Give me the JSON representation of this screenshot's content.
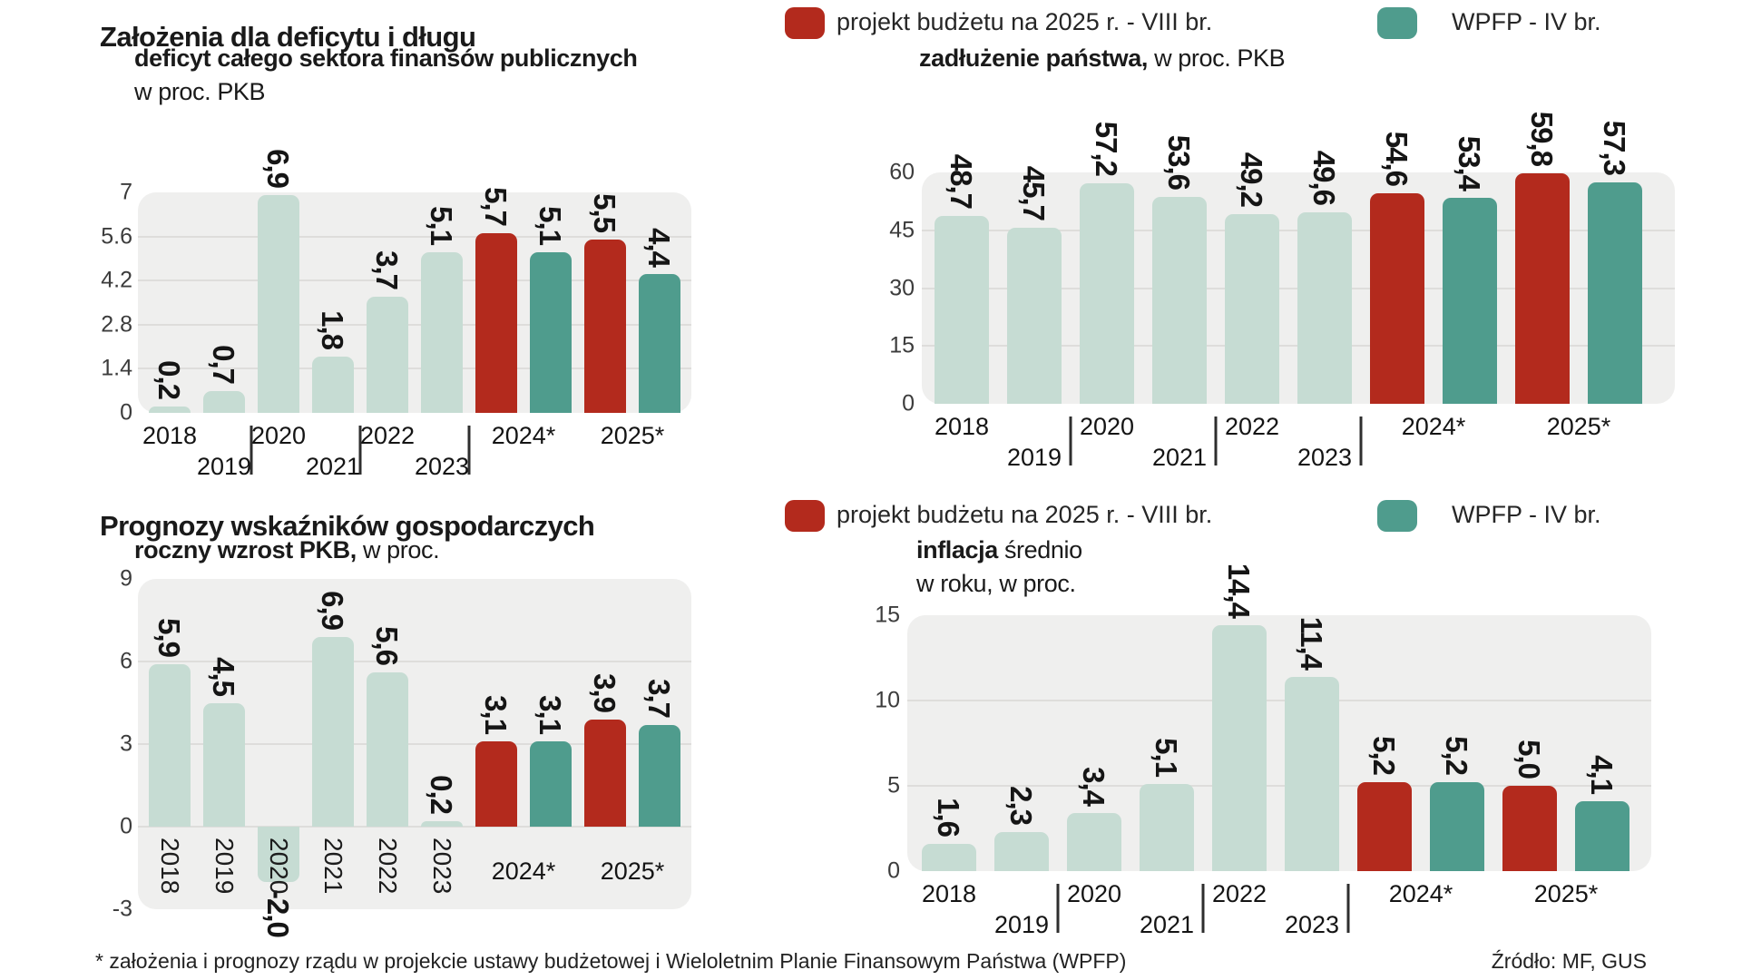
{
  "page": {
    "section1_title": "Założenia dla deficytu i długu",
    "section2_title": "Prognozy wskaźników gospodarczych",
    "footnote": "* założenia i prognozy rządu w projekcie ustawy budżetowej i Wieloletnim Planie Finansowym Państwa (WPFP)",
    "source": "Źródło: MF, GUS"
  },
  "legend": {
    "items": [
      {
        "label": "projekt budżetu na 2025 r. - VIII br.",
        "color_key": "red"
      },
      {
        "label": "WPFP - IV  br.",
        "color_key": "teal"
      }
    ]
  },
  "colors": {
    "light": "#c6dcd3",
    "red": "#b32a1d",
    "teal": "#4f9c8d",
    "plot_bg": "#efefee",
    "grid": "#dedddb"
  },
  "chart_data": [
    {
      "id": "deficyt",
      "type": "bar",
      "title_lines": [
        [
          {
            "t": "deficyt całego sektora finansów publicznych",
            "b": true
          }
        ],
        [
          {
            "t": "w proc. PKB",
            "b": false
          }
        ]
      ],
      "ylim": [
        0,
        7
      ],
      "yticks": [
        {
          "v": 7,
          "label": "7"
        },
        {
          "v": 5.6,
          "label": "5.6"
        },
        {
          "v": 4.2,
          "label": "4.2"
        },
        {
          "v": 2.8,
          "label": "2.8"
        },
        {
          "v": 1.4,
          "label": "1.4"
        },
        {
          "v": 0,
          "label": "0"
        }
      ],
      "bars": [
        {
          "category": "2018",
          "value": 0.2,
          "label": "0,2",
          "series": "light"
        },
        {
          "category": "2019",
          "value": 0.7,
          "label": "0,7",
          "series": "light"
        },
        {
          "category": "2020",
          "value": 6.9,
          "label": "6,9",
          "series": "light"
        },
        {
          "category": "2021",
          "value": 1.8,
          "label": "1,8",
          "series": "light"
        },
        {
          "category": "2022",
          "value": 3.7,
          "label": "3,7",
          "series": "light"
        },
        {
          "category": "2023",
          "value": 5.1,
          "label": "5,1",
          "series": "light"
        },
        {
          "category": "2024*",
          "value": 5.7,
          "label": "5,7",
          "series": "red"
        },
        {
          "category": "2024*",
          "value": 5.1,
          "label": "5,1",
          "series": "teal"
        },
        {
          "category": "2025*",
          "value": 5.5,
          "label": "5,5",
          "series": "red"
        },
        {
          "category": "2025*",
          "value": 4.4,
          "label": "4,4",
          "series": "teal"
        }
      ]
    },
    {
      "id": "dlug",
      "type": "bar",
      "title_lines": [
        [
          {
            "t": "zadłużenie państwa,",
            "b": true
          },
          {
            "t": " w proc. PKB",
            "b": false
          }
        ]
      ],
      "ylim": [
        0,
        60
      ],
      "yticks": [
        {
          "v": 60,
          "label": "60"
        },
        {
          "v": 45,
          "label": "45"
        },
        {
          "v": 30,
          "label": "30"
        },
        {
          "v": 15,
          "label": "15"
        },
        {
          "v": 0,
          "label": "0"
        }
      ],
      "bars": [
        {
          "category": "2018",
          "value": 48.7,
          "label": "48,7",
          "series": "light"
        },
        {
          "category": "2019",
          "value": 45.7,
          "label": "45,7",
          "series": "light"
        },
        {
          "category": "2020",
          "value": 57.2,
          "label": "57,2",
          "series": "light"
        },
        {
          "category": "2021",
          "value": 53.6,
          "label": "53,6",
          "series": "light"
        },
        {
          "category": "2022",
          "value": 49.2,
          "label": "49,2",
          "series": "light"
        },
        {
          "category": "2023",
          "value": 49.6,
          "label": "49,6",
          "series": "light"
        },
        {
          "category": "2024*",
          "value": 54.6,
          "label": "54,6",
          "series": "red"
        },
        {
          "category": "2024*",
          "value": 53.4,
          "label": "53,4",
          "series": "teal"
        },
        {
          "category": "2025*",
          "value": 59.8,
          "label": "59,8",
          "series": "red"
        },
        {
          "category": "2025*",
          "value": 57.3,
          "label": "57,3",
          "series": "teal"
        }
      ]
    },
    {
      "id": "pkb",
      "type": "bar",
      "title_lines": [
        [
          {
            "t": "roczny wzrost PKB,",
            "b": true
          },
          {
            "t": " w proc.",
            "b": false
          }
        ]
      ],
      "ylim": [
        -3,
        9
      ],
      "yticks": [
        {
          "v": 9,
          "label": "9"
        },
        {
          "v": 6,
          "label": "6"
        },
        {
          "v": 3,
          "label": "3"
        },
        {
          "v": 0,
          "label": "0"
        },
        {
          "v": -3,
          "label": "-3"
        }
      ],
      "bars": [
        {
          "category": "2018",
          "value": 5.9,
          "label": "5,9",
          "series": "light"
        },
        {
          "category": "2019",
          "value": 4.5,
          "label": "4,5",
          "series": "light"
        },
        {
          "category": "2020",
          "value": -2.0,
          "label": "-2,0",
          "series": "light"
        },
        {
          "category": "2021",
          "value": 6.9,
          "label": "6,9",
          "series": "light"
        },
        {
          "category": "2022",
          "value": 5.6,
          "label": "5,6",
          "series": "light"
        },
        {
          "category": "2023",
          "value": 0.2,
          "label": "0,2",
          "series": "light"
        },
        {
          "category": "2024*",
          "value": 3.1,
          "label": "3,1",
          "series": "red"
        },
        {
          "category": "2024*",
          "value": 3.1,
          "label": "3,1",
          "series": "teal"
        },
        {
          "category": "2025*",
          "value": 3.9,
          "label": "3,9",
          "series": "red"
        },
        {
          "category": "2025*",
          "value": 3.7,
          "label": "3,7",
          "series": "teal"
        }
      ]
    },
    {
      "id": "inflacja",
      "type": "bar",
      "title_lines": [
        [
          {
            "t": "inflacja",
            "b": true
          },
          {
            "t": " średnio",
            "b": false
          }
        ],
        [
          {
            "t": "w roku, w proc.",
            "b": false
          }
        ]
      ],
      "ylim": [
        0,
        15
      ],
      "yticks": [
        {
          "v": 15,
          "label": "15"
        },
        {
          "v": 10,
          "label": "10"
        },
        {
          "v": 5,
          "label": "5"
        },
        {
          "v": 0,
          "label": "0"
        }
      ],
      "bars": [
        {
          "category": "2018",
          "value": 1.6,
          "label": "1,6",
          "series": "light"
        },
        {
          "category": "2019",
          "value": 2.3,
          "label": "2,3",
          "series": "light"
        },
        {
          "category": "2020",
          "value": 3.4,
          "label": "3,4",
          "series": "light"
        },
        {
          "category": "2021",
          "value": 5.1,
          "label": "5,1",
          "series": "light"
        },
        {
          "category": "2022",
          "value": 14.4,
          "label": "14,4",
          "series": "light"
        },
        {
          "category": "2023",
          "value": 11.4,
          "label": "11,4",
          "series": "light"
        },
        {
          "category": "2024*",
          "value": 5.2,
          "label": "5,2",
          "series": "red"
        },
        {
          "category": "2024*",
          "value": 5.2,
          "label": "5,2",
          "series": "teal"
        },
        {
          "category": "2025*",
          "value": 5.0,
          "label": "5,0",
          "series": "red"
        },
        {
          "category": "2025*",
          "value": 4.1,
          "label": "4,1",
          "series": "teal"
        }
      ]
    }
  ]
}
